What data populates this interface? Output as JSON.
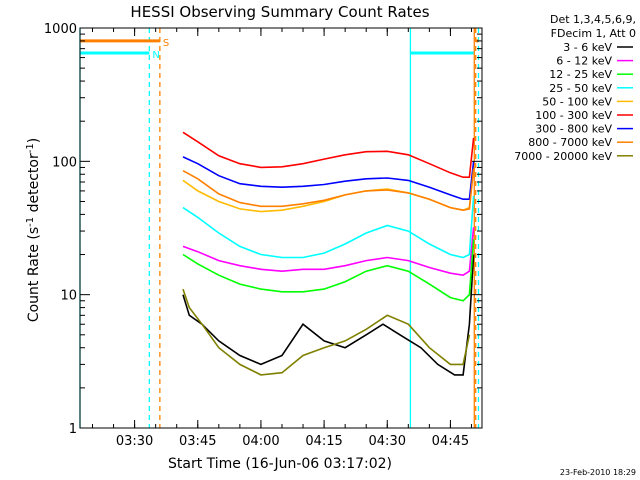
{
  "chart_data": {
    "type": "line",
    "title": "HESSI Observing Summary Count Rates",
    "xlabel": "Start Time (16-Jun-06 03:17:02)",
    "ylabel_main": "Count Rate (s",
    "ylabel_sup1": "-1",
    "ylabel_mid": " detector",
    "ylabel_sup2": "-1",
    "ylabel_end": ")",
    "yscale": "log",
    "xlim": [
      "03:17:02",
      "04:52:30"
    ],
    "ylim": [
      1,
      1000
    ],
    "x_ticks": [
      "03:30",
      "03:45",
      "04:00",
      "04:15",
      "04:30",
      "04:45"
    ],
    "y_ticks": [
      "1",
      "10",
      "100",
      "1000"
    ],
    "legend_header": [
      "Det 1,3,4,5,6,9,",
      "FDecim 1, Att 0"
    ],
    "legend_position": "right, outside plot",
    "series": [
      {
        "name": "3 - 6 keV",
        "color": "#000000",
        "x": [
          "03:41:30",
          "03:43:00",
          "03:46:00",
          "03:50:00",
          "03:55:00",
          "04:00:00",
          "04:05:00",
          "04:10:00",
          "04:15:00",
          "04:20:00",
          "04:25:00",
          "04:29:00",
          "04:33:00",
          "04:38:00",
          "04:42:00",
          "04:46:00",
          "04:48:00",
          "04:49:30",
          "04:50:30"
        ],
        "values": [
          10,
          7,
          6,
          4.5,
          3.5,
          3,
          3.5,
          6,
          4.5,
          4,
          5,
          6,
          5,
          4,
          3,
          2.5,
          2.5,
          6,
          20
        ]
      },
      {
        "name": "6 - 12 keV",
        "color": "#ff00ff",
        "x": [
          "03:41:30",
          "03:45:00",
          "03:50:00",
          "03:55:00",
          "04:00:00",
          "04:05:00",
          "04:10:00",
          "04:15:00",
          "04:20:00",
          "04:25:00",
          "04:30:00",
          "04:35:00",
          "04:40:00",
          "04:45:00",
          "04:48:00",
          "04:49:30",
          "04:50:30"
        ],
        "values": [
          23,
          21,
          18,
          16.5,
          15.5,
          15,
          15.5,
          15.5,
          16.5,
          18,
          19,
          18,
          16,
          14.5,
          14,
          15,
          32
        ]
      },
      {
        "name": "12 - 25 keV",
        "color": "#00ff00",
        "x": [
          "03:41:30",
          "03:45:00",
          "03:50:00",
          "03:55:00",
          "04:00:00",
          "04:05:00",
          "04:10:00",
          "04:15:00",
          "04:20:00",
          "04:25:00",
          "04:30:00",
          "04:35:00",
          "04:40:00",
          "04:45:00",
          "04:48:00",
          "04:49:30",
          "04:50:30"
        ],
        "values": [
          20,
          17,
          14,
          12,
          11,
          10.5,
          10.5,
          11,
          12.5,
          15,
          16.5,
          15,
          12,
          9.5,
          9,
          10,
          26
        ]
      },
      {
        "name": "25 - 50 keV",
        "color": "#00ffff",
        "x": [
          "03:41:30",
          "03:45:00",
          "03:50:00",
          "03:55:00",
          "04:00:00",
          "04:05:00",
          "04:10:00",
          "04:15:00",
          "04:20:00",
          "04:25:00",
          "04:30:00",
          "04:35:00",
          "04:40:00",
          "04:45:00",
          "04:48:00",
          "04:49:30",
          "04:50:30"
        ],
        "values": [
          45,
          38,
          29,
          23,
          20,
          19,
          19,
          20.5,
          24,
          29,
          33,
          30,
          24,
          20,
          19,
          20,
          55
        ]
      },
      {
        "name": "50 - 100 keV",
        "color": "#ffbb00",
        "x": [
          "03:41:30",
          "03:45:00",
          "03:50:00",
          "03:55:00",
          "04:00:00",
          "04:05:00",
          "04:10:00",
          "04:15:00",
          "04:20:00",
          "04:25:00",
          "04:30:00",
          "04:35:00",
          "04:40:00",
          "04:45:00",
          "04:48:00",
          "04:49:30",
          "04:50:30"
        ],
        "values": [
          72,
          60,
          50,
          44,
          42,
          43,
          46,
          50,
          56,
          60,
          62,
          58,
          52,
          45,
          43,
          45,
          95
        ]
      },
      {
        "name": "100 - 300 keV",
        "color": "#ff0000",
        "x": [
          "03:41:30",
          "03:45:00",
          "03:50:00",
          "03:55:00",
          "04:00:00",
          "04:05:00",
          "04:10:00",
          "04:15:00",
          "04:20:00",
          "04:25:00",
          "04:30:00",
          "04:35:00",
          "04:40:00",
          "04:45:00",
          "04:48:00",
          "04:49:30",
          "04:50:30"
        ],
        "values": [
          165,
          140,
          110,
          96,
          90,
          91,
          96,
          104,
          112,
          118,
          119,
          112,
          96,
          82,
          76,
          76,
          150
        ]
      },
      {
        "name": "300 - 800 keV",
        "color": "#0000ff",
        "x": [
          "03:41:30",
          "03:45:00",
          "03:50:00",
          "03:55:00",
          "04:00:00",
          "04:05:00",
          "04:10:00",
          "04:15:00",
          "04:20:00",
          "04:25:00",
          "04:30:00",
          "04:35:00",
          "04:40:00",
          "04:45:00",
          "04:48:00",
          "04:49:30",
          "04:50:30"
        ],
        "values": [
          108,
          96,
          78,
          68,
          65,
          64,
          65,
          67,
          71,
          74,
          75,
          72,
          64,
          56,
          52,
          52,
          100
        ]
      },
      {
        "name": "800 - 7000 keV",
        "color": "#ff8000",
        "x": [
          "03:41:30",
          "03:45:00",
          "03:50:00",
          "03:55:00",
          "04:00:00",
          "04:05:00",
          "04:10:00",
          "04:15:00",
          "04:20:00",
          "04:25:00",
          "04:30:00",
          "04:35:00",
          "04:40:00",
          "04:45:00",
          "04:48:00",
          "04:49:30",
          "04:50:30"
        ],
        "values": [
          85,
          74,
          57,
          49,
          46,
          46,
          48,
          51,
          56,
          60,
          61,
          58,
          52,
          45,
          43,
          44,
          88
        ]
      },
      {
        "name": "7000 - 20000 keV",
        "color": "#808000",
        "x": [
          "03:41:30",
          "03:43:00",
          "03:46:00",
          "03:50:00",
          "03:55:00",
          "04:00:00",
          "04:05:00",
          "04:10:00",
          "04:15:00",
          "04:20:00",
          "04:25:00",
          "04:30:00",
          "04:35:00",
          "04:40:00",
          "04:45:00",
          "04:48:00",
          "04:49:30"
        ],
        "values": [
          11,
          8,
          6,
          4,
          3,
          2.5,
          2.6,
          3.5,
          4,
          4.5,
          5.5,
          7,
          6,
          4,
          3,
          3,
          5
        ]
      }
    ],
    "flag_lines": [
      {
        "label": "S",
        "color": "#ff8000",
        "level": 800,
        "segments": [
          [
            "03:17:02",
            "03:36:00"
          ],
          [
            "04:51:00",
            "04:51:40"
          ]
        ]
      },
      {
        "label": "N",
        "color": "#00ffff",
        "level": 650,
        "segments": [
          [
            "03:17:02",
            "03:33:30"
          ],
          [
            "04:35:30",
            "04:50:30"
          ]
        ]
      }
    ],
    "vertical_lines": [
      {
        "color": "#00ffff",
        "style": "solid",
        "at": "03:17:02"
      },
      {
        "color": "#00ffff",
        "style": "dashed",
        "at": "03:33:30"
      },
      {
        "color": "#ff8000",
        "style": "dashed",
        "at": "03:36:00"
      },
      {
        "color": "#00ffff",
        "style": "solid",
        "at": "04:35:30"
      },
      {
        "color": "#ff8000",
        "style": "solid",
        "at": "04:50:40"
      },
      {
        "color": "#ff8000",
        "style": "dashed",
        "at": "04:51:00"
      },
      {
        "color": "#00ffff",
        "style": "dashed",
        "at": "04:51:40"
      }
    ],
    "footer_date": "23-Feb-2010 18:29"
  }
}
